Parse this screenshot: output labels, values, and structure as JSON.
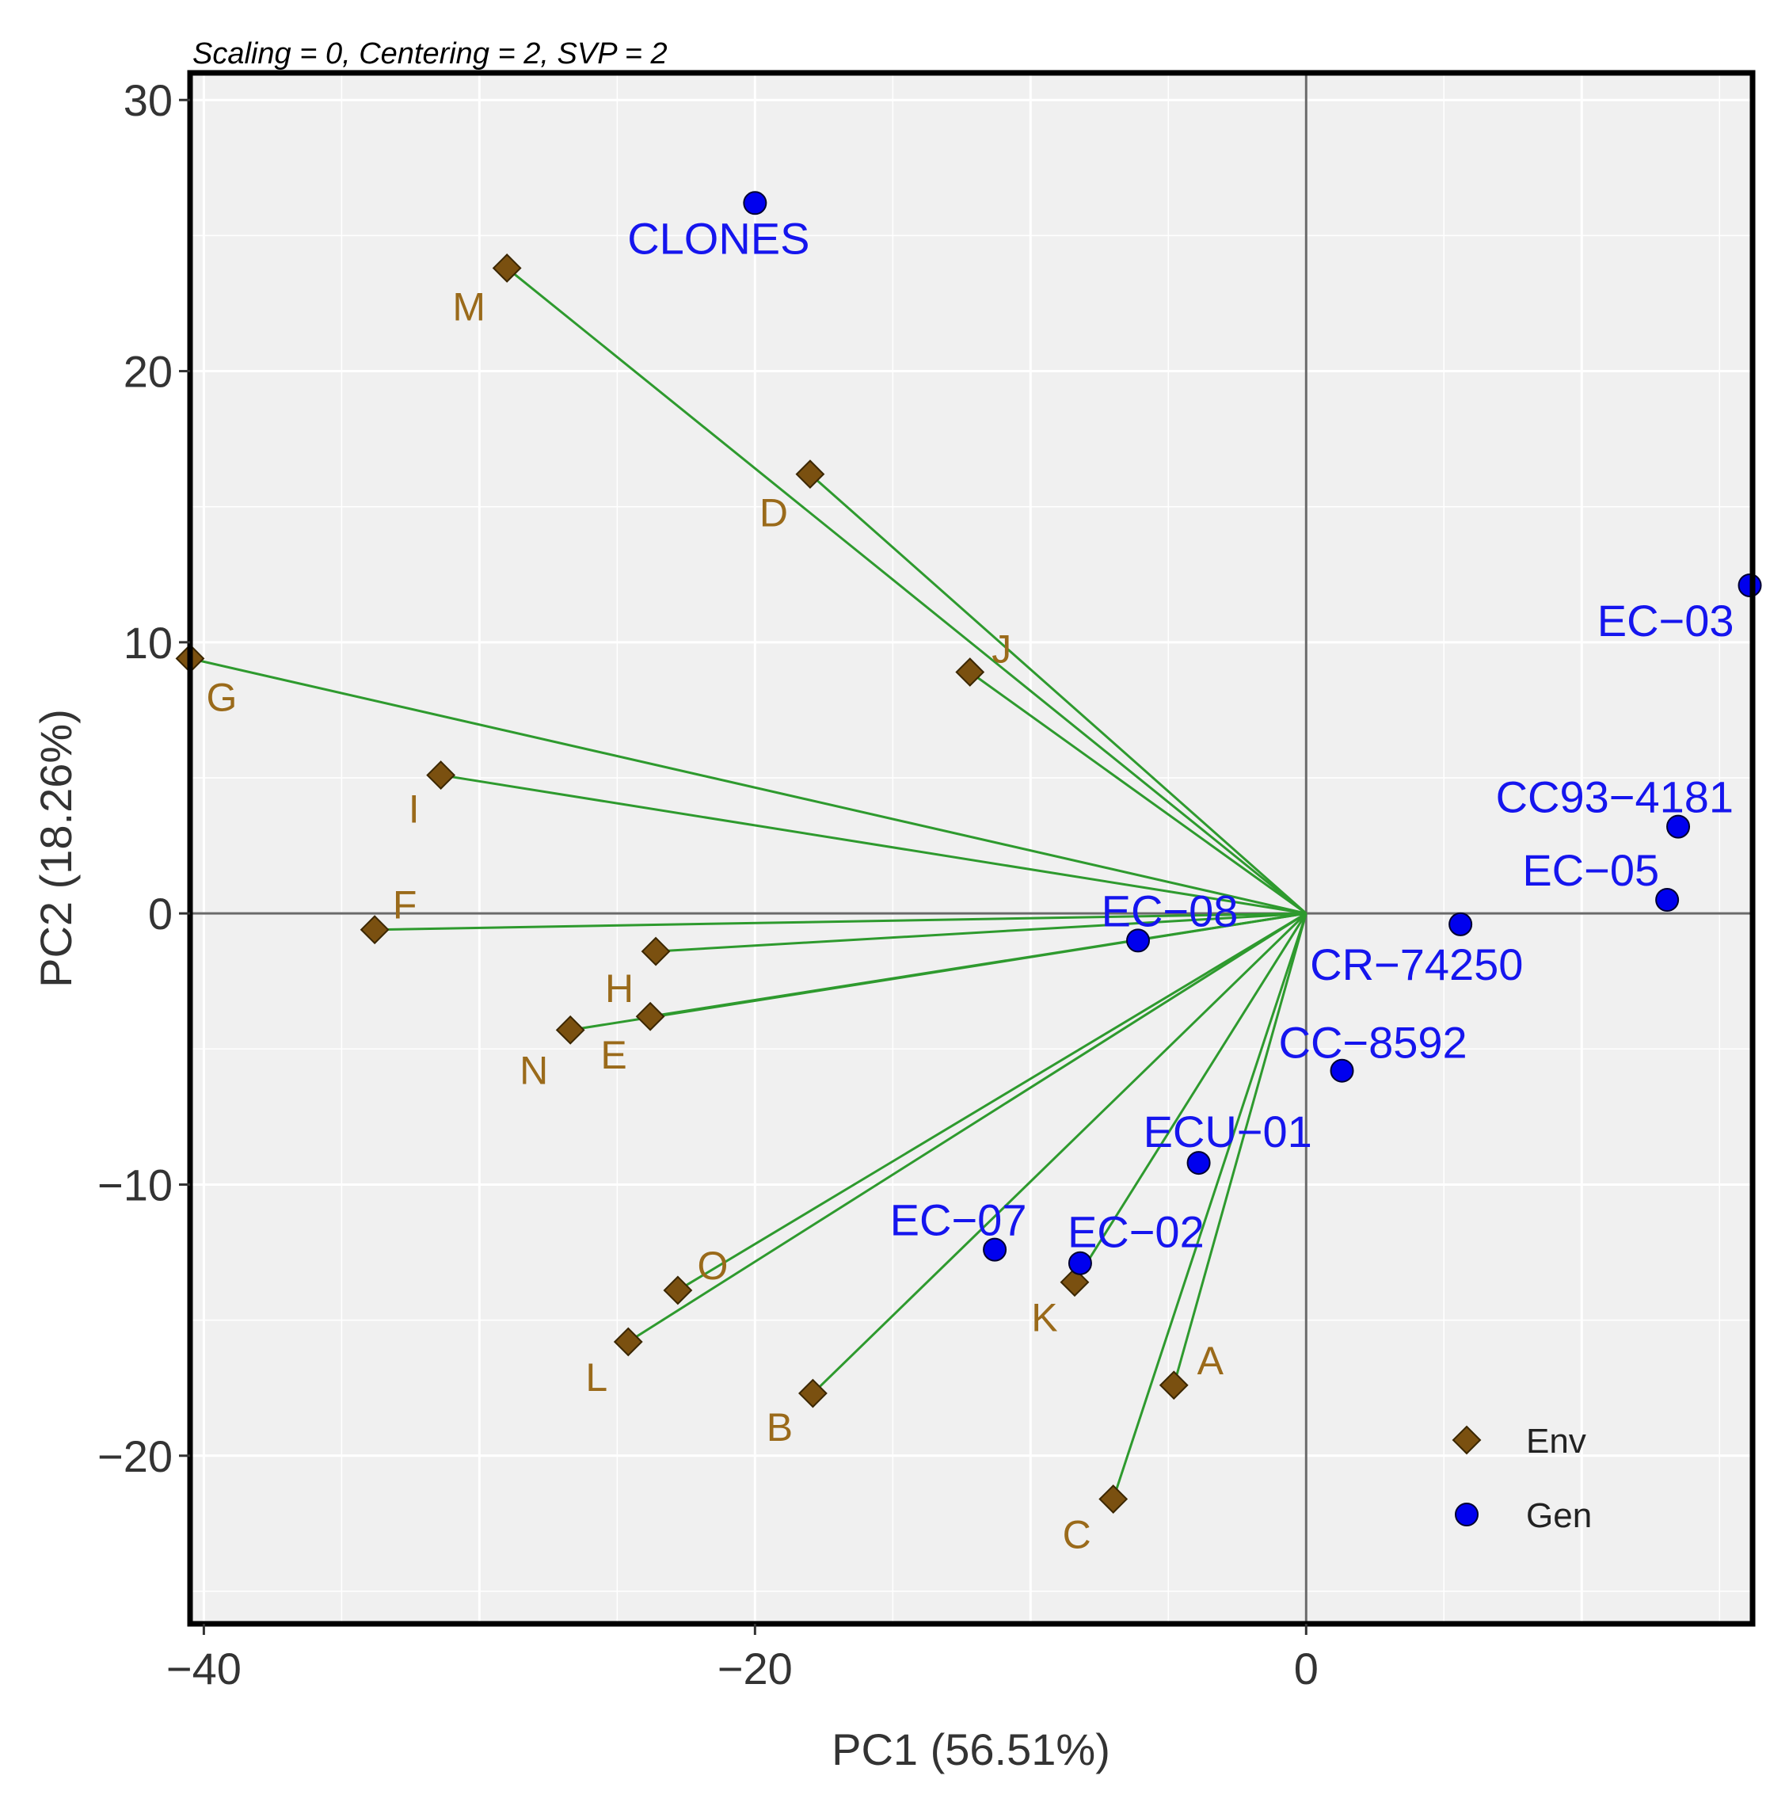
{
  "chart_data": {
    "type": "scatter",
    "subtitle": "Scaling = 0, Centering = 2, SVP = 2",
    "xlabel": "PC1 (56.51%)",
    "ylabel": "PC2 (18.26%)",
    "xlim": [
      -40.5,
      16.2
    ],
    "ylim": [
      -26.2,
      31.0
    ],
    "x_ticks": [
      -40,
      -20,
      0
    ],
    "y_ticks": [
      30,
      20,
      10,
      0,
      -10,
      -20
    ],
    "grid": true,
    "legend": {
      "position": "bottom-right",
      "entries": [
        "Env",
        "Gen"
      ]
    },
    "colors": {
      "env_marker": "#7a5010",
      "env_label": "#9a6a1a",
      "gen_marker": "#0000ee",
      "gen_label": "#1515ee",
      "vector": "#2e9a2e",
      "panel": "#f0f0f0"
    },
    "series": [
      {
        "name": "Env",
        "marker": "diamond",
        "vectors_from_origin": true,
        "points": [
          {
            "label": "M",
            "x": -29.0,
            "y": 23.8
          },
          {
            "label": "D",
            "x": -18.0,
            "y": 16.2
          },
          {
            "label": "J",
            "x": -12.2,
            "y": 8.9
          },
          {
            "label": "G",
            "x": -40.5,
            "y": 9.4
          },
          {
            "label": "I",
            "x": -31.4,
            "y": 5.1
          },
          {
            "label": "F",
            "x": -33.8,
            "y": -0.6
          },
          {
            "label": "H",
            "x": -23.6,
            "y": -1.4
          },
          {
            "label": "E",
            "x": -23.8,
            "y": -3.8
          },
          {
            "label": "N",
            "x": -26.7,
            "y": -4.3
          },
          {
            "label": "O",
            "x": -22.8,
            "y": -13.9
          },
          {
            "label": "L",
            "x": -24.6,
            "y": -15.8
          },
          {
            "label": "B",
            "x": -17.9,
            "y": -17.7
          },
          {
            "label": "K",
            "x": -8.4,
            "y": -13.6
          },
          {
            "label": "A",
            "x": -4.8,
            "y": -17.4
          },
          {
            "label": "C",
            "x": -7.0,
            "y": -21.6
          }
        ]
      },
      {
        "name": "Gen",
        "marker": "circle",
        "points": [
          {
            "label": "CLONES",
            "x": -20.0,
            "y": 26.2
          },
          {
            "label": "EC-03",
            "x": 16.1,
            "y": 12.1
          },
          {
            "label": "CC93-4181",
            "x": 13.5,
            "y": 3.2
          },
          {
            "label": "EC-05",
            "x": 13.1,
            "y": 0.5
          },
          {
            "label": "CR-74250",
            "x": 5.6,
            "y": -0.4
          },
          {
            "label": "EC-08",
            "x": -6.1,
            "y": -1.0
          },
          {
            "label": "CC-8592",
            "x": 1.3,
            "y": -5.8
          },
          {
            "label": "ECU-01",
            "x": -3.9,
            "y": -9.2
          },
          {
            "label": "EC-07",
            "x": -11.3,
            "y": -12.4
          },
          {
            "label": "EC-02",
            "x": -8.2,
            "y": -12.9
          }
        ]
      }
    ]
  }
}
